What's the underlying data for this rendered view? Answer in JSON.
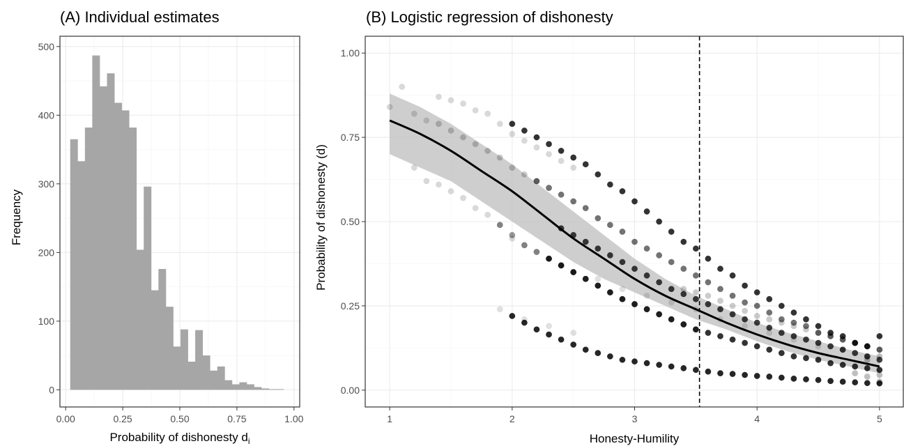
{
  "chart_data": [
    {
      "panel": "A",
      "type": "bar",
      "title": "(A) Individual estimates",
      "xlabel": "Probability of dishonesty  d",
      "xlabel_subscript": "i",
      "ylabel": "Frequency",
      "xlim": [
        -0.025,
        1.025
      ],
      "ylim": [
        -25,
        515
      ],
      "xticks": [
        0.0,
        0.25,
        0.5,
        0.75,
        1.0
      ],
      "xtick_labels": [
        "0.00",
        "0.25",
        "0.50",
        "0.75",
        "1.00"
      ],
      "yticks": [
        0,
        100,
        200,
        300,
        400,
        500
      ],
      "ytick_labels": [
        "0",
        "100",
        "200",
        "300",
        "400",
        "500"
      ],
      "grid": true,
      "bin_width": 0.0322,
      "bin_start": 0.02,
      "bar_color": "#a6a6a6",
      "values": [
        365,
        333,
        382,
        487,
        442,
        461,
        418,
        407,
        382,
        204,
        296,
        145,
        176,
        121,
        63,
        88,
        41,
        87,
        50,
        28,
        34,
        14,
        8,
        11,
        8,
        4,
        2,
        1,
        1,
        0
      ]
    },
    {
      "panel": "B",
      "type": "scatter",
      "title": "(B) Logistic regression of dishonesty",
      "xlabel": "Honesty-Humility",
      "ylabel": "Probability of dishonesty (d)",
      "xlim": [
        0.8,
        5.2
      ],
      "ylim": [
        -0.05,
        1.05
      ],
      "xticks": [
        1,
        2,
        3,
        4,
        5
      ],
      "xtick_labels": [
        "1",
        "2",
        "3",
        "4",
        "5"
      ],
      "yticks": [
        0,
        0.25,
        0.5,
        0.75,
        1.0
      ],
      "ytick_labels": [
        "0.00",
        "0.25",
        "0.50",
        "0.75",
        "1.00"
      ],
      "grid": true,
      "vline_x": 3.53,
      "fit": {
        "x": [
          1.0,
          1.25,
          1.5,
          1.75,
          2.0,
          2.25,
          2.5,
          2.75,
          3.0,
          3.25,
          3.5,
          3.75,
          4.0,
          4.25,
          4.5,
          4.75,
          5.0
        ],
        "y": [
          0.8,
          0.76,
          0.71,
          0.65,
          0.59,
          0.52,
          0.45,
          0.39,
          0.33,
          0.28,
          0.24,
          0.2,
          0.165,
          0.135,
          0.11,
          0.09,
          0.07
        ],
        "lower": [
          0.7,
          0.66,
          0.62,
          0.56,
          0.5,
          0.44,
          0.38,
          0.33,
          0.29,
          0.25,
          0.21,
          0.18,
          0.145,
          0.115,
          0.09,
          0.07,
          0.05
        ],
        "upper": [
          0.88,
          0.84,
          0.79,
          0.73,
          0.67,
          0.6,
          0.53,
          0.46,
          0.39,
          0.33,
          0.28,
          0.24,
          0.2,
          0.17,
          0.145,
          0.12,
          0.1
        ],
        "line_color": "#000000",
        "band_color": "#bdbdbd"
      },
      "point_series": [
        {
          "x": [
            2.0,
            2.1,
            2.2,
            2.3,
            2.4,
            2.5,
            2.6,
            2.7,
            2.8,
            2.9,
            3.0,
            3.1,
            3.2,
            3.3,
            3.4,
            3.5,
            3.6,
            3.7,
            3.8,
            3.9,
            4.0,
            4.1,
            4.2,
            4.3,
            4.4,
            4.5,
            4.6,
            4.7,
            4.8,
            4.9,
            5.0
          ],
          "y": [
            0.79,
            0.77,
            0.75,
            0.73,
            0.71,
            0.69,
            0.67,
            0.64,
            0.61,
            0.59,
            0.56,
            0.53,
            0.5,
            0.47,
            0.44,
            0.42,
            0.39,
            0.36,
            0.34,
            0.31,
            0.29,
            0.27,
            0.25,
            0.23,
            0.21,
            0.19,
            0.17,
            0.16,
            0.14,
            0.13,
            0.16
          ],
          "opacity": 0.8
        },
        {
          "x": [
            2.0,
            2.1,
            2.2,
            2.3,
            2.4,
            2.5,
            2.6,
            2.7,
            2.8,
            2.9,
            3.0,
            3.1,
            3.2,
            3.3,
            3.4,
            3.5,
            3.6,
            3.7,
            3.8,
            3.9,
            4.0,
            4.1,
            4.2,
            4.3,
            4.4,
            4.5,
            4.6,
            4.7,
            4.8,
            4.9,
            5.0
          ],
          "y": [
            0.22,
            0.2,
            0.18,
            0.165,
            0.15,
            0.135,
            0.12,
            0.11,
            0.1,
            0.09,
            0.085,
            0.08,
            0.075,
            0.07,
            0.065,
            0.06,
            0.055,
            0.05,
            0.048,
            0.045,
            0.042,
            0.04,
            0.037,
            0.034,
            0.032,
            0.03,
            0.027,
            0.025,
            0.023,
            0.021,
            0.02
          ],
          "opacity": 0.85
        },
        {
          "x": [
            2.3,
            2.4,
            2.5,
            2.6,
            2.7,
            2.8,
            2.9,
            3.0,
            3.1,
            3.2,
            3.3,
            3.4,
            3.5,
            3.6,
            3.7,
            3.8,
            3.9,
            4.0,
            4.1,
            4.2,
            4.3,
            4.4,
            4.5,
            4.6,
            4.7,
            4.8,
            4.9,
            5.0
          ],
          "y": [
            0.39,
            0.37,
            0.35,
            0.33,
            0.31,
            0.29,
            0.27,
            0.255,
            0.24,
            0.225,
            0.21,
            0.195,
            0.18,
            0.17,
            0.16,
            0.15,
            0.14,
            0.13,
            0.12,
            0.11,
            0.1,
            0.095,
            0.09,
            0.08,
            0.075,
            0.07,
            0.065,
            0.06
          ],
          "opacity": 0.8
        },
        {
          "x": [
            2.4,
            2.5,
            2.6,
            2.7,
            2.8,
            2.9,
            3.0,
            3.1,
            3.2,
            3.3,
            3.4,
            3.5,
            3.6,
            3.7,
            3.8,
            3.9,
            4.0,
            4.1,
            4.2,
            4.3,
            4.4,
            4.5,
            4.6,
            4.7,
            4.8,
            4.9,
            5.0
          ],
          "y": [
            0.48,
            0.46,
            0.44,
            0.42,
            0.4,
            0.38,
            0.36,
            0.34,
            0.32,
            0.3,
            0.285,
            0.27,
            0.255,
            0.24,
            0.225,
            0.21,
            0.2,
            0.185,
            0.17,
            0.16,
            0.15,
            0.14,
            0.13,
            0.12,
            0.11,
            0.1,
            0.09
          ],
          "opacity": 0.75
        },
        {
          "x": [
            2.2,
            2.3,
            2.4,
            2.5,
            2.6,
            2.7,
            2.8,
            2.9,
            3.0,
            3.1,
            3.2,
            3.3,
            3.4,
            3.5,
            3.6,
            3.7,
            3.8,
            3.9,
            4.0,
            4.1,
            4.2,
            4.3,
            4.4,
            4.5,
            4.6,
            4.7,
            4.8,
            4.9,
            5.0
          ],
          "y": [
            0.62,
            0.6,
            0.58,
            0.56,
            0.54,
            0.51,
            0.49,
            0.47,
            0.44,
            0.42,
            0.4,
            0.38,
            0.36,
            0.34,
            0.32,
            0.3,
            0.28,
            0.26,
            0.25,
            0.23,
            0.21,
            0.2,
            0.19,
            0.17,
            0.16,
            0.15,
            0.14,
            0.13,
            0.12
          ],
          "opacity": 0.55
        },
        {
          "x": [
            1.9,
            2.0,
            2.1,
            2.2,
            2.3,
            2.4,
            2.5,
            2.6,
            2.7,
            2.8,
            2.9,
            3.0,
            3.1,
            3.2,
            3.3,
            3.4,
            3.5
          ],
          "y": [
            0.49,
            0.46,
            0.43,
            0.41,
            0.39,
            0.37,
            0.35,
            0.33,
            0.31,
            0.29,
            0.27,
            0.255,
            0.24,
            0.225,
            0.21,
            0.195,
            0.18
          ],
          "opacity": 0.4
        },
        {
          "x": [
            1.0,
            1.1,
            1.2,
            1.3,
            1.4,
            1.5,
            1.6,
            1.7,
            1.8,
            1.9,
            2.0,
            2.1,
            2.2,
            2.3,
            2.4,
            2.5
          ],
          "y": [
            0.84,
            0.9,
            0.82,
            0.8,
            0.87,
            0.86,
            0.85,
            0.83,
            0.82,
            0.79,
            0.76,
            0.74,
            0.72,
            0.7,
            0.68,
            0.66
          ],
          "opacity": 0.15
        },
        {
          "x": [
            1.2,
            1.3,
            1.4,
            1.5,
            1.6,
            1.7,
            1.8,
            1.9,
            2.0,
            2.1,
            2.2,
            2.3,
            2.4,
            2.5
          ],
          "y": [
            0.66,
            0.62,
            0.61,
            0.59,
            0.57,
            0.54,
            0.52,
            0.49,
            0.45,
            0.43,
            0.41,
            0.39,
            0.37,
            0.35
          ],
          "opacity": 0.15
        },
        {
          "x": [
            1.4,
            1.5,
            1.6,
            1.7,
            1.8,
            1.9,
            2.0,
            2.1,
            2.2
          ],
          "y": [
            0.79,
            0.77,
            0.75,
            0.73,
            0.71,
            0.69,
            0.66,
            0.64,
            0.62
          ],
          "opacity": 0.2
        },
        {
          "x": [
            1.9,
            2.1,
            2.3,
            2.5,
            2.7,
            2.9,
            3.1,
            3.3,
            3.5,
            3.7,
            3.9,
            4.1,
            4.3,
            4.5,
            4.7,
            4.9
          ],
          "y": [
            0.24,
            0.21,
            0.19,
            0.17,
            0.33,
            0.3,
            0.28,
            0.26,
            0.24,
            0.21,
            0.19,
            0.17,
            0.15,
            0.13,
            0.12,
            0.1
          ],
          "opacity": 0.12
        },
        {
          "x": [
            3.4,
            3.5,
            3.6,
            3.7,
            3.8,
            3.9,
            4.0,
            4.1,
            4.2,
            4.3,
            4.4,
            4.5,
            4.6,
            4.7,
            4.8,
            4.9,
            5.0
          ],
          "y": [
            0.3,
            0.29,
            0.28,
            0.265,
            0.25,
            0.235,
            0.22,
            0.21,
            0.2,
            0.19,
            0.18,
            0.17,
            0.16,
            0.15,
            0.14,
            0.13,
            0.12
          ],
          "opacity": 0.2
        },
        {
          "x": [
            4.8,
            4.9,
            5.0,
            5.0,
            4.9,
            5.0
          ],
          "y": [
            0.05,
            0.04,
            0.025,
            0.045,
            0.09,
            0.1
          ],
          "opacity": 0.25
        }
      ]
    }
  ]
}
